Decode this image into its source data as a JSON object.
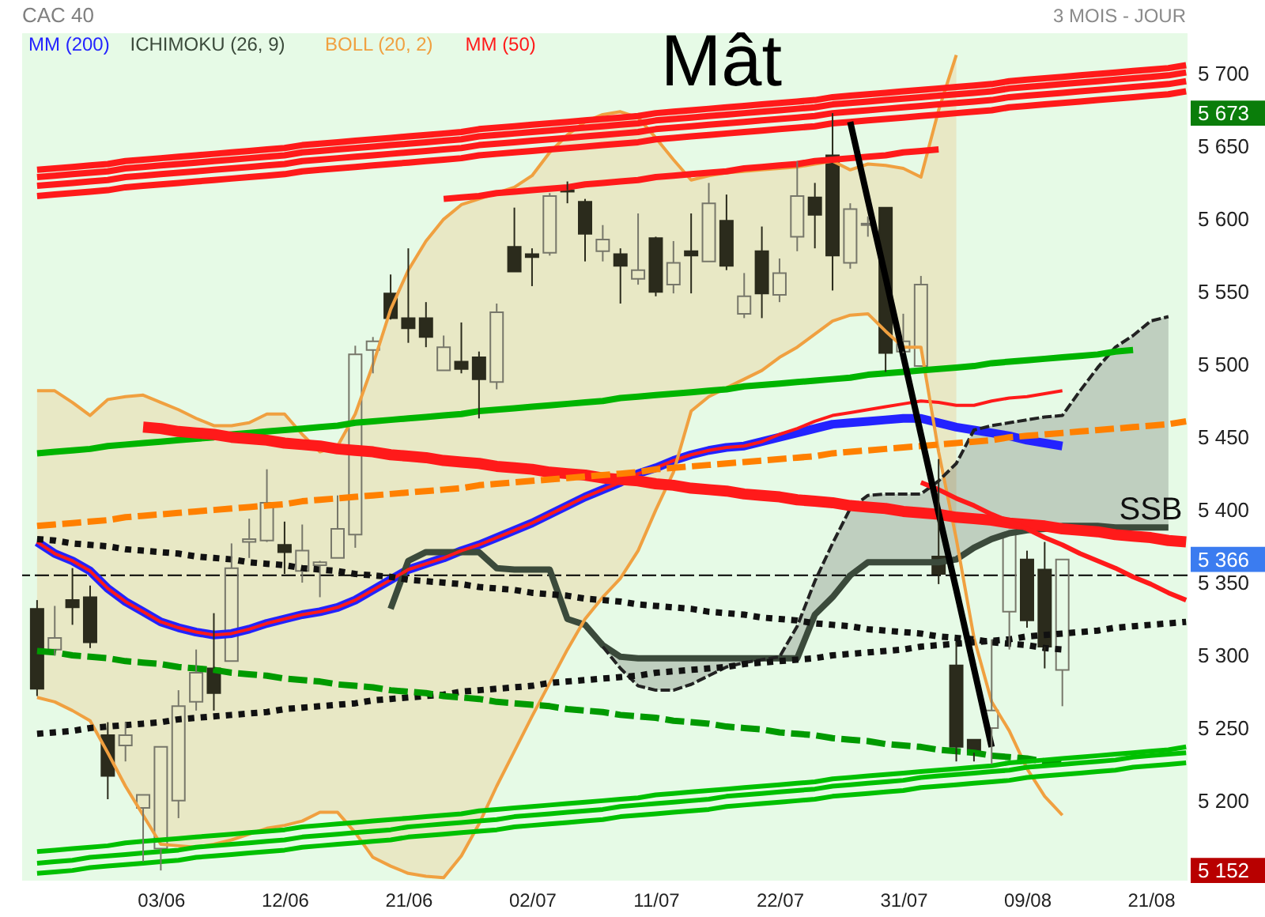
{
  "chart_data": {
    "type": "candlestick",
    "title": "CAC 40",
    "subtitle": "3 MOIS - JOUR",
    "categories": [
      null,
      null,
      null,
      null,
      null,
      null,
      null,
      "03/06",
      null,
      null,
      null,
      null,
      null,
      null,
      "12/06",
      null,
      null,
      null,
      null,
      null,
      null,
      "21/06",
      null,
      null,
      null,
      null,
      null,
      null,
      "02/07",
      null,
      null,
      null,
      null,
      null,
      null,
      "11/07",
      null,
      null,
      null,
      null,
      null,
      null,
      "22/07",
      null,
      null,
      null,
      null,
      null,
      null,
      "31/07",
      null,
      null,
      null,
      null,
      null,
      null,
      "09/08",
      null,
      null,
      null,
      null,
      null,
      null,
      "21/08",
      null,
      null
    ],
    "ylim": [
      5145,
      5728
    ],
    "yticks": [
      {
        "value": 5152,
        "label": "5 152"
      },
      {
        "value": 5200,
        "label": "5 200"
      },
      {
        "value": 5250,
        "label": "5 250"
      },
      {
        "value": 5300,
        "label": "5 300"
      },
      {
        "value": 5350,
        "label": "5 350"
      },
      {
        "value": 5366,
        "label": "5 366"
      },
      {
        "value": 5400,
        "label": "5 400"
      },
      {
        "value": 5450,
        "label": "5 450"
      },
      {
        "value": 5500,
        "label": "5 500"
      },
      {
        "value": 5550,
        "label": "5 550"
      },
      {
        "value": 5600,
        "label": "5 600"
      },
      {
        "value": 5650,
        "label": "5 650"
      },
      {
        "value": 5673,
        "label": "5 673"
      },
      {
        "value": 5700,
        "label": "5 700"
      }
    ],
    "legend": "top left",
    "series": [
      {
        "colors": [
          "#2b2b1c",
          "#77776a",
          "#2b2b1c",
          "#2b2b1c",
          "#2b2b1c",
          "#77776a",
          "#77776a",
          "#77776a",
          "#77776a",
          "#77776a",
          "#2b2b1c",
          "#77776a",
          "#77776a",
          "#77776a",
          "#2b2b1c",
          "#77776a",
          "#77776a",
          "#77776a",
          "#77776a",
          "#77776a",
          "#2b2b1c",
          "#2b2b1c",
          "#2b2b1c",
          "#77776a",
          "#2b2b1c",
          "#2b2b1c",
          "#77776a",
          "#2b2b1c",
          "#2b2b1c",
          "#77776a",
          "#2b2b1c",
          "#2b2b1c",
          "#77776a",
          "#2b2b1c",
          "#77776a",
          "#2b2b1c",
          "#77776a",
          "#2b2b1c",
          "#77776a",
          "#2b2b1c",
          "#77776a",
          "#2b2b1c",
          "#77776a",
          "#77776a",
          "#2b2b1c",
          "#2b2b1c",
          "#77776a",
          "#77776a",
          "#2b2b1c",
          "#77776a",
          "#77776a",
          "#2b2b1c",
          "#2b2b1c",
          "#2b2b1c",
          "#77776a",
          "#77776a",
          "#2b2b1c",
          "#2b2b1c",
          "#77776a",
          null,
          null,
          null,
          null,
          null,
          null,
          null
        ],
        "ohlc": [
          [
            5332,
            5338,
            5272,
            5277
          ],
          [
            5304,
            5334,
            5300,
            5312
          ],
          [
            5338,
            5360,
            5321,
            5333
          ],
          [
            5340,
            5348,
            5305,
            5309
          ],
          [
            5245,
            5254,
            5201,
            5217
          ],
          [
            5238,
            5254,
            5227,
            5245
          ],
          [
            5195,
            5204,
            5158,
            5204
          ],
          [
            5167,
            5237,
            5152,
            5237
          ],
          [
            5200,
            5276,
            5188,
            5265
          ],
          [
            5268,
            5304,
            5262,
            5288
          ],
          [
            5291,
            5329,
            5262,
            5274
          ],
          [
            5296,
            5377,
            5296,
            5360
          ],
          [
            5378,
            5394,
            5367,
            5380
          ],
          [
            5379,
            5428,
            5378,
            5405
          ],
          [
            5376,
            5392,
            5356,
            5371
          ],
          [
            5358,
            5390,
            5350,
            5372
          ],
          [
            5362,
            5365,
            5340,
            5364
          ],
          [
            5367,
            5410,
            5367,
            5387
          ],
          [
            5383,
            5513,
            5374,
            5507
          ],
          [
            5510,
            5519,
            5494,
            5516
          ],
          [
            5549,
            5562,
            5531,
            5532
          ],
          [
            5532,
            5580,
            5515,
            5525
          ],
          [
            5532,
            5543,
            5512,
            5519
          ],
          [
            5496,
            5520,
            5496,
            5512
          ],
          [
            5502,
            5529,
            5494,
            5497
          ],
          [
            5505,
            5509,
            5463,
            5490
          ],
          [
            5488,
            5542,
            5483,
            5536
          ],
          [
            5581,
            5608,
            5564,
            5564
          ],
          [
            5576,
            5580,
            5554,
            5574
          ],
          [
            5577,
            5618,
            5575,
            5616
          ],
          [
            5620,
            5626,
            5611,
            5619
          ],
          [
            5612,
            5614,
            5571,
            5590
          ],
          [
            5578,
            5596,
            5571,
            5586
          ],
          [
            5576,
            5580,
            5542,
            5568
          ],
          [
            5559,
            5604,
            5555,
            5565
          ],
          [
            5587,
            5588,
            5547,
            5550
          ],
          [
            5555,
            5585,
            5549,
            5570
          ],
          [
            5578,
            5604,
            5549,
            5575
          ],
          [
            5571,
            5625,
            5571,
            5611
          ],
          [
            5599,
            5617,
            5565,
            5568
          ],
          [
            5535,
            5563,
            5532,
            5547
          ],
          [
            5578,
            5595,
            5532,
            5549
          ],
          [
            5548,
            5573,
            5543,
            5563
          ],
          [
            5588,
            5640,
            5578,
            5616
          ],
          [
            5615,
            5625,
            5580,
            5603
          ],
          [
            5644,
            5673,
            5551,
            5575
          ],
          [
            5570,
            5611,
            5566,
            5607
          ],
          [
            5596,
            5602,
            5588,
            5597
          ],
          [
            5608,
            5608,
            5495,
            5508
          ],
          [
            5509,
            5535,
            5508,
            5516
          ],
          [
            5499,
            5561,
            5499,
            5555
          ],
          [
            5368,
            5435,
            5349,
            5356
          ],
          [
            5293,
            5309,
            5227,
            5237
          ],
          [
            5242,
            5242,
            5227,
            5233
          ],
          [
            5250,
            5311,
            5225,
            5262
          ],
          [
            5330,
            5384,
            5304,
            5384
          ],
          [
            5366,
            5372,
            5319,
            5324
          ],
          [
            5359,
            5378,
            5291,
            5306
          ],
          [
            5290,
            5366,
            5265,
            5366
          ],
          null,
          null,
          null,
          null,
          null,
          null,
          null
        ]
      },
      {
        "type": "line",
        "name": "MM (200)",
        "color": "#2323ff",
        "values": [
          5378,
          5370,
          5365,
          5358,
          5346,
          5337,
          5330,
          5323,
          5319,
          5316,
          5314,
          5315,
          5318,
          5322,
          5325,
          5328,
          5330,
          5333,
          5338,
          5345,
          5352,
          5359,
          5363,
          5367,
          5372,
          5376,
          5381,
          5386,
          5391,
          5397,
          5403,
          5409,
          5414,
          5419,
          5425,
          5429,
          5434,
          5438,
          5441,
          5443,
          5444,
          5447,
          5450,
          5453,
          5456,
          5459,
          5460,
          5461,
          5462,
          5463,
          5463,
          5460,
          5457,
          5455,
          5453,
          5451,
          5448,
          5446,
          5444,
          null,
          null,
          null,
          null,
          null,
          null,
          null
        ]
      },
      {
        "type": "line",
        "name": "ICHIMOKU (26, 9)",
        "color": "#3b4a3b",
        "values": [
          null,
          null,
          null,
          null,
          null,
          null,
          null,
          null,
          null,
          null,
          null,
          null,
          null,
          null,
          null,
          null,
          null,
          null,
          null,
          null,
          5332,
          5365,
          5371,
          5371,
          5371,
          5371,
          5360,
          5359,
          5359,
          5359,
          5325,
          5321,
          5307,
          5299,
          5298,
          5298,
          5298,
          5298,
          5298,
          5298,
          5298,
          5298,
          5298,
          5298,
          5328,
          5340,
          5355,
          5364,
          5364,
          5364,
          5364,
          5364,
          5366,
          5374,
          5380,
          5384,
          5386,
          5387,
          5389,
          5389,
          5389,
          5388,
          5388,
          5388,
          5388,
          null
        ]
      },
      {
        "type": "line",
        "name": "BOLL (20, 2)",
        "color": "#f0a040",
        "values": [
          5482,
          5482,
          5474,
          5465,
          5476,
          5478,
          5479,
          5474,
          5469,
          5463,
          5458,
          5458,
          5460,
          5466,
          5466,
          5452,
          5440,
          5444,
          5466,
          5500,
          5538,
          5565,
          5585,
          5600,
          5610,
          5614,
          5618,
          5622,
          5630,
          5646,
          5658,
          5667,
          5672,
          5674,
          5670,
          5656,
          5641,
          5627,
          5630,
          5632,
          5633,
          5634,
          5635,
          5636,
          5638,
          5640,
          5634,
          5638,
          5637,
          5635,
          5629,
          5675,
          5713,
          null,
          null,
          null,
          null,
          null,
          null,
          null,
          null,
          null,
          null,
          null,
          null,
          null
        ],
        "upper": [
          5482,
          5482,
          5474,
          5465,
          5476,
          5478,
          5479,
          5474,
          5469,
          5463,
          5458,
          5458,
          5460,
          5466,
          5466,
          5452,
          5440,
          5444,
          5466,
          5500,
          5538,
          5565,
          5585,
          5600,
          5610,
          5614,
          5618,
          5622,
          5630,
          5646,
          5658,
          5667,
          5672,
          5674,
          5670,
          5656,
          5641,
          5627,
          5630,
          5632,
          5633,
          5634,
          5635,
          5636,
          5638,
          5640,
          5634,
          5638,
          5637,
          5635,
          5629,
          5675,
          5713,
          null,
          null,
          null,
          null,
          null,
          null,
          null,
          null,
          null,
          null,
          null,
          null,
          null
        ],
        "lower": [
          5271,
          5268,
          5262,
          5255,
          5233,
          5210,
          5190,
          5170,
          5169,
          5168,
          5170,
          5173,
          5177,
          5181,
          5183,
          5186,
          5192,
          5192,
          5178,
          5161,
          5155,
          5150,
          5148,
          5147,
          5162,
          5184,
          5210,
          5234,
          5258,
          5281,
          5304,
          5325,
          5340,
          5353,
          5372,
          5400,
          5426,
          5468,
          5478,
          5484,
          5490,
          5496,
          5505,
          5512,
          5521,
          5530,
          5534,
          5535,
          5523,
          5512,
          5512,
          5440,
          5380,
          null,
          null,
          null,
          null,
          null,
          null,
          null,
          null,
          null,
          null,
          null,
          null,
          null
        ]
      },
      {
        "type": "line",
        "name": "MM (50)",
        "color": "#ff1a1a",
        "values": [
          5378,
          5370,
          5365,
          5358,
          5346,
          5337,
          5330,
          5323,
          5319,
          5316,
          5314,
          5315,
          5318,
          5322,
          5325,
          5328,
          5330,
          5333,
          5338,
          5345,
          5352,
          5359,
          5363,
          5367,
          5372,
          5376,
          5381,
          5386,
          5391,
          5397,
          5403,
          5409,
          5414,
          5419,
          5425,
          5429,
          5434,
          5438,
          5441,
          5443,
          5444,
          5447,
          5452,
          5456,
          5461,
          5465,
          5467,
          5469,
          5471,
          5473,
          5475,
          5474,
          5472,
          5472,
          5475,
          5477,
          5478,
          5480,
          5482,
          null,
          null,
          null,
          null,
          null,
          null,
          null
        ]
      },
      {
        "type": "line",
        "color": "#f0a040",
        "values": [
          5271,
          5268,
          5262,
          5255,
          5233,
          5210,
          5190,
          5170,
          5169,
          5168,
          5170,
          5173,
          5177,
          5181,
          5183,
          5186,
          5192,
          5192,
          5178,
          5161,
          5155,
          5150,
          5148,
          5147,
          5162,
          5184,
          5210,
          5234,
          5258,
          5281,
          5304,
          5325,
          5340,
          5353,
          5372,
          5400,
          5426,
          5468,
          5478,
          5484,
          5490,
          5496,
          5505,
          5512,
          5521,
          5530,
          5534,
          5535,
          5523,
          5512,
          5512,
          5440,
          5380,
          5312,
          5268,
          5248,
          5222,
          5203,
          5190,
          null,
          null,
          null,
          null,
          null,
          null,
          null
        ]
      },
      {
        "type": "line",
        "color": "#222222",
        "line_style": "dashed",
        "values": [
          null,
          null,
          null,
          null,
          null,
          null,
          null,
          null,
          null,
          null,
          null,
          null,
          null,
          null,
          null,
          null,
          null,
          null,
          null,
          null,
          null,
          null,
          null,
          null,
          null,
          null,
          null,
          null,
          null,
          null,
          null,
          null,
          5306,
          5291,
          5279,
          5276,
          5276,
          5280,
          5286,
          5292,
          5295,
          5297,
          5299,
          5320,
          5351,
          5377,
          5401,
          5410,
          5411,
          5411,
          5411,
          5420,
          5432,
          5455,
          5458,
          5460,
          5462,
          5464,
          5465,
          5482,
          5498,
          5512,
          5520,
          5530,
          5533,
          null
        ],
        "lower": [
          null,
          null,
          null,
          null,
          null,
          null,
          null,
          null,
          null,
          null,
          null,
          null,
          null,
          null,
          null,
          null,
          null,
          null,
          null,
          null,
          null,
          null,
          null,
          null,
          null,
          null,
          null,
          null,
          null,
          null,
          null,
          null,
          5306,
          5291,
          5279,
          5276,
          5276,
          5280,
          5286,
          5292,
          5295,
          5297,
          5299,
          5320,
          5351,
          5377,
          5401,
          5410,
          5411,
          5411,
          5411,
          5420,
          5432,
          5455,
          5458,
          5460,
          5462,
          5464,
          5465,
          5482,
          5498,
          5512,
          5520,
          5530,
          5533,
          null
        ],
        "upper": [
          null,
          null,
          null,
          null,
          null,
          null,
          null,
          null,
          null,
          null,
          null,
          null,
          null,
          null,
          null,
          null,
          null,
          null,
          null,
          null,
          null,
          null,
          null,
          null,
          null,
          null,
          null,
          null,
          null,
          null,
          null,
          null,
          5307,
          5299,
          5298,
          5298,
          5298,
          5298,
          5298,
          5298,
          5298,
          5298,
          5298,
          5298,
          5328,
          5340,
          5355,
          5364,
          5364,
          5364,
          5364,
          5364,
          5366,
          5374,
          5380,
          5384,
          5386,
          5387,
          5389,
          5389,
          5389,
          5388,
          5388,
          5388,
          5388,
          null
        ]
      },
      {
        "type": "line",
        "color": "#ff1a1a",
        "values": [
          5634,
          5635,
          5636,
          5637,
          5638,
          5640,
          5641,
          5642,
          5643,
          5644,
          5645,
          5646,
          5647,
          5648,
          5649,
          5651,
          5652,
          5653,
          5654,
          5655,
          5656,
          5657,
          5658,
          5659,
          5660,
          5662,
          5663,
          5664,
          5665,
          5666,
          5667,
          5668,
          5669,
          5670,
          5671,
          5673,
          5674,
          5675,
          5676,
          5677,
          5678,
          5679,
          5680,
          5681,
          5682,
          5684,
          5685,
          5686,
          5687,
          5688,
          5689,
          5690,
          5691,
          5692,
          5693,
          5695,
          5696,
          5697,
          5698,
          5699,
          5700,
          5701,
          5702,
          5703,
          5704,
          5706
        ]
      },
      {
        "type": "line",
        "color": "#ff1a1a",
        "values": [
          5629,
          5630,
          5631,
          5632,
          5633,
          5635,
          5636,
          5637,
          5638,
          5639,
          5640,
          5641,
          5642,
          5643,
          5644,
          5646,
          5647,
          5648,
          5649,
          5650,
          5651,
          5652,
          5653,
          5654,
          5655,
          5657,
          5658,
          5659,
          5660,
          5661,
          5662,
          5663,
          5664,
          5665,
          5666,
          5668,
          5669,
          5670,
          5671,
          5672,
          5673,
          5674,
          5675,
          5676,
          5677,
          5679,
          5680,
          5681,
          5682,
          5683,
          5684,
          5685,
          5686,
          5687,
          5688,
          5690,
          5691,
          5692,
          5693,
          5694,
          5695,
          5696,
          5697,
          5698,
          5699,
          5701
        ]
      },
      {
        "type": "line",
        "color": "#ff1a1a",
        "values": [
          5623,
          5624,
          5625,
          5626,
          5627,
          5629,
          5630,
          5631,
          5632,
          5633,
          5634,
          5635,
          5636,
          5637,
          5638,
          5640,
          5641,
          5642,
          5643,
          5644,
          5645,
          5646,
          5647,
          5648,
          5649,
          5651,
          5652,
          5653,
          5654,
          5655,
          5656,
          5657,
          5658,
          5659,
          5660,
          5662,
          5663,
          5664,
          5665,
          5666,
          5667,
          5668,
          5669,
          5670,
          5671,
          5673,
          5674,
          5675,
          5676,
          5677,
          5678,
          5679,
          5680,
          5681,
          5682,
          5684,
          5685,
          5686,
          5687,
          5688,
          5689,
          5690,
          5691,
          5692,
          5693,
          5695
        ]
      },
      {
        "type": "line",
        "color": "#ff1a1a",
        "values": [
          5616,
          5617,
          5618,
          5619,
          5620,
          5622,
          5623,
          5624,
          5625,
          5626,
          5627,
          5628,
          5629,
          5630,
          5631,
          5633,
          5634,
          5635,
          5636,
          5637,
          5638,
          5639,
          5640,
          5641,
          5642,
          5644,
          5645,
          5646,
          5647,
          5648,
          5649,
          5650,
          5651,
          5652,
          5653,
          5655,
          5656,
          5657,
          5658,
          5659,
          5660,
          5661,
          5662,
          5663,
          5664,
          5666,
          5667,
          5668,
          5669,
          5670,
          5671,
          5672,
          5673,
          5674,
          5675,
          5677,
          5678,
          5679,
          5680,
          5681,
          5682,
          5683,
          5684,
          5685,
          5686,
          5688
        ]
      },
      {
        "type": "line",
        "color": "#ff1a1a",
        "values": [
          null,
          null,
          null,
          null,
          null,
          null,
          null,
          null,
          null,
          null,
          null,
          null,
          null,
          null,
          null,
          null,
          null,
          null,
          null,
          null,
          null,
          null,
          null,
          5614,
          5615,
          5616,
          5618,
          5619,
          5620,
          5621,
          5622,
          5624,
          5625,
          5626,
          5627,
          5629,
          5630,
          5631,
          5632,
          5633,
          5635,
          5636,
          5637,
          5638,
          5640,
          5641,
          5642,
          5643,
          5644,
          5646,
          5647,
          5648,
          null,
          null,
          null,
          null,
          null,
          null,
          null,
          null,
          null,
          null,
          null,
          null,
          null,
          null
        ]
      },
      {
        "type": "line",
        "color": "#00b400",
        "values": [
          5439,
          5440,
          5441,
          5442,
          5444,
          5445,
          5446,
          5447,
          5448,
          5449,
          5450,
          5452,
          5453,
          5454,
          5455,
          5456,
          5457,
          5458,
          5460,
          5461,
          5462,
          5463,
          5464,
          5465,
          5466,
          5468,
          5469,
          5470,
          5471,
          5472,
          5473,
          5474,
          5475,
          5477,
          5478,
          5479,
          5480,
          5481,
          5482,
          5483,
          5485,
          5486,
          5487,
          5488,
          5489,
          5490,
          5491,
          5493,
          5494,
          5495,
          5496,
          5497,
          5498,
          5499,
          5501,
          5502,
          5503,
          5504,
          5505,
          5506,
          5507,
          5509,
          5510,
          null,
          null,
          null
        ]
      },
      {
        "type": "line",
        "color": "#ff1a1a",
        "values": [
          null,
          null,
          null,
          null,
          null,
          null,
          5457,
          5456,
          5454,
          5453,
          5452,
          5450,
          5449,
          5448,
          5446,
          5445,
          5444,
          5442,
          5441,
          5440,
          5438,
          5437,
          5436,
          5434,
          5433,
          5432,
          5430,
          5429,
          5428,
          5426,
          5425,
          5424,
          5422,
          5421,
          5420,
          5418,
          5417,
          5415,
          5414,
          5413,
          5411,
          5410,
          5409,
          5407,
          5406,
          5405,
          5403,
          5402,
          5401,
          5399,
          5398,
          5397,
          5395,
          5394,
          5393,
          5391,
          5390,
          5389,
          5387,
          5386,
          5385,
          5383,
          5382,
          5381,
          5379,
          5378
        ]
      },
      {
        "type": "line",
        "color": "#ff1a1a",
        "values": [
          null,
          null,
          null,
          null,
          null,
          null,
          null,
          null,
          null,
          null,
          null,
          null,
          null,
          null,
          null,
          null,
          null,
          null,
          null,
          null,
          null,
          null,
          null,
          null,
          null,
          null,
          null,
          null,
          null,
          null,
          null,
          null,
          null,
          null,
          null,
          null,
          null,
          null,
          null,
          null,
          null,
          null,
          null,
          null,
          null,
          null,
          null,
          null,
          null,
          null,
          5419,
          5414,
          5408,
          5403,
          5397,
          5392,
          5387,
          5381,
          5376,
          5370,
          5365,
          5360,
          5354,
          5349,
          5343,
          5338
        ]
      },
      {
        "type": "line",
        "color": "#ff8000",
        "line_style": "dashed",
        "values": [
          5389,
          5390,
          5391,
          5392,
          5393,
          5395,
          5396,
          5397,
          5398,
          5399,
          5400,
          5401,
          5402,
          5403,
          5404,
          5406,
          5407,
          5408,
          5409,
          5410,
          5411,
          5412,
          5413,
          5414,
          5415,
          5417,
          5418,
          5419,
          5420,
          5421,
          5422,
          5423,
          5424,
          5425,
          5426,
          5428,
          5429,
          5430,
          5431,
          5432,
          5433,
          5434,
          5435,
          5436,
          5437,
          5439,
          5440,
          5441,
          5442,
          5443,
          5444,
          5445,
          5446,
          5447,
          5448,
          5450,
          5451,
          5452,
          5453,
          5454,
          5455,
          5456,
          5457,
          5458,
          5459,
          5461
        ]
      },
      {
        "type": "line",
        "color": "#111111",
        "line_style": "dotted",
        "values": [
          5380,
          5379,
          5377,
          5376,
          5375,
          5373,
          5372,
          5371,
          5370,
          5368,
          5367,
          5366,
          5364,
          5363,
          5362,
          5360,
          5359,
          5358,
          5356,
          5355,
          5354,
          5352,
          5351,
          5350,
          5349,
          5347,
          5346,
          5345,
          5343,
          5342,
          5341,
          5339,
          5338,
          5337,
          5335,
          5334,
          5333,
          5332,
          5330,
          5329,
          5328,
          5326,
          5325,
          5324,
          5322,
          5321,
          5320,
          5318,
          5317,
          5316,
          5315,
          5313,
          5312,
          5311,
          5309,
          5308,
          5307,
          5305,
          5304,
          null,
          null,
          null,
          null,
          null,
          null,
          null
        ]
      },
      {
        "type": "line",
        "color": "#111111",
        "line_style": "dotted",
        "values": [
          5246,
          5247,
          5248,
          5250,
          5251,
          5252,
          5253,
          5254,
          5256,
          5257,
          5258,
          5259,
          5260,
          5261,
          5263,
          5264,
          5265,
          5266,
          5267,
          5269,
          5270,
          5271,
          5272,
          5273,
          5275,
          5276,
          5277,
          5278,
          5279,
          5281,
          5282,
          5283,
          5284,
          5285,
          5286,
          5288,
          5289,
          5290,
          5291,
          5292,
          5294,
          5295,
          5296,
          5297,
          5298,
          5300,
          5301,
          5302,
          5303,
          5304,
          5306,
          5307,
          5308,
          5309,
          5310,
          5311,
          5313,
          5314,
          5315,
          5316,
          5317,
          5319,
          5320,
          5321,
          5322,
          5323
        ]
      },
      {
        "type": "line",
        "color": "#009a00",
        "line_style": "dashed",
        "values": [
          5303,
          5302,
          5300,
          5299,
          5298,
          5296,
          5295,
          5294,
          5292,
          5291,
          5290,
          5288,
          5287,
          5286,
          5284,
          5283,
          5282,
          5280,
          5279,
          5278,
          5276,
          5275,
          5274,
          5272,
          5271,
          5270,
          5268,
          5267,
          5266,
          5265,
          5263,
          5262,
          5261,
          5259,
          5258,
          5257,
          5255,
          5254,
          5253,
          5251,
          5250,
          5249,
          5247,
          5246,
          5245,
          5243,
          5242,
          5241,
          5239,
          5238,
          5237,
          5235,
          5234,
          5233,
          5231,
          5230,
          5229,
          5227,
          5226,
          null,
          null,
          null,
          null,
          null,
          null,
          null
        ]
      },
      {
        "type": "line",
        "color": "#00c000",
        "values": [
          5165,
          5166,
          5167,
          5168,
          5169,
          5171,
          5172,
          5173,
          5174,
          5175,
          5176,
          5177,
          5178,
          5179,
          5180,
          5182,
          5183,
          5184,
          5185,
          5186,
          5187,
          5188,
          5189,
          5190,
          5191,
          5193,
          5194,
          5195,
          5196,
          5197,
          5198,
          5199,
          5200,
          5201,
          5202,
          5204,
          5205,
          5206,
          5207,
          5208,
          5209,
          5210,
          5211,
          5212,
          5213,
          5215,
          5216,
          5217,
          5218,
          5219,
          5220,
          5221,
          5222,
          5223,
          5224,
          5226,
          5227,
          5228,
          5229,
          5230,
          5231,
          5232,
          5233,
          5234,
          5235,
          5237
        ]
      },
      {
        "type": "line",
        "color": "#00c000",
        "values": [
          5157,
          5158,
          5159,
          5161,
          5162,
          5163,
          5164,
          5165,
          5166,
          5168,
          5169,
          5170,
          5171,
          5172,
          5173,
          5175,
          5176,
          5177,
          5178,
          5179,
          5180,
          5182,
          5183,
          5184,
          5185,
          5186,
          5187,
          5189,
          5190,
          5191,
          5192,
          5193,
          5194,
          5196,
          5197,
          5198,
          5199,
          5200,
          5201,
          5203,
          5204,
          5205,
          5206,
          5207,
          5208,
          5210,
          5211,
          5212,
          5213,
          5214,
          5216,
          5217,
          5218,
          5219,
          5220,
          5221,
          5223,
          5224,
          5225,
          5226,
          5227,
          5228,
          5230,
          5231,
          5232,
          5233
        ]
      },
      {
        "type": "line",
        "color": "#00c000",
        "values": [
          5150,
          5151,
          5152,
          5154,
          5155,
          5156,
          5157,
          5158,
          5159,
          5161,
          5162,
          5163,
          5164,
          5165,
          5166,
          5168,
          5169,
          5170,
          5171,
          5172,
          5173,
          5175,
          5176,
          5177,
          5178,
          5179,
          5180,
          5182,
          5183,
          5184,
          5185,
          5186,
          5187,
          5189,
          5190,
          5191,
          5192,
          5193,
          5194,
          5196,
          5197,
          5198,
          5199,
          5200,
          5201,
          5203,
          5204,
          5205,
          5206,
          5207,
          5209,
          5210,
          5211,
          5212,
          5213,
          5214,
          5216,
          5217,
          5218,
          5219,
          5220,
          5221,
          5223,
          5224,
          5225,
          5226
        ]
      },
      {
        "type": "line",
        "color": "#000000",
        "values": [
          null,
          null,
          null,
          null,
          null,
          null,
          null,
          null,
          null,
          null,
          null,
          null,
          null,
          null,
          null,
          null,
          null,
          null,
          null,
          null,
          null,
          null,
          null,
          null,
          null,
          null,
          null,
          null,
          null,
          null,
          null,
          null,
          null,
          null,
          null,
          null,
          null,
          null,
          null,
          null,
          null,
          null,
          null,
          null,
          null,
          null,
          5667,
          5613,
          5560,
          5506,
          5452,
          5398,
          5345,
          5291,
          5237,
          null,
          null,
          null,
          null,
          null,
          null,
          null,
          null,
          null,
          null,
          null
        ]
      }
    ],
    "ref_lines": [
      {
        "axis": "y",
        "value": 5355,
        "color": "#000000",
        "line_style": "dashed"
      }
    ],
    "annotations": [
      "Mât",
      {
        "text": "SSB",
        "x": "21/08",
        "y": 5388
      }
    ]
  }
}
